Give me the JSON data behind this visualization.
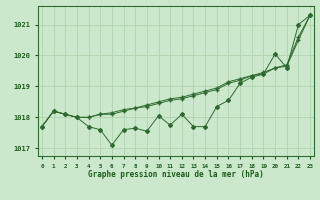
{
  "title": "Graphe pression niveau de la mer (hPa)",
  "xlabel_hours": [
    0,
    1,
    2,
    3,
    4,
    5,
    6,
    7,
    8,
    9,
    10,
    11,
    12,
    13,
    14,
    15,
    16,
    17,
    18,
    19,
    20,
    21,
    22,
    23
  ],
  "line1": [
    1017.7,
    1018.2,
    1018.1,
    1018.0,
    1017.7,
    1017.6,
    1017.1,
    1017.6,
    1017.65,
    1017.55,
    1018.05,
    1017.75,
    1018.1,
    1017.7,
    1017.7,
    1018.35,
    1018.55,
    1019.1,
    1019.3,
    1019.4,
    1020.05,
    1019.6,
    1021.0,
    1021.3
  ],
  "line2": [
    1017.7,
    1018.2,
    1018.1,
    1018.0,
    1018.0,
    1018.1,
    1018.1,
    1018.2,
    1018.3,
    1018.35,
    1018.45,
    1018.55,
    1018.6,
    1018.7,
    1018.8,
    1018.9,
    1019.1,
    1019.2,
    1019.35,
    1019.4,
    1019.6,
    1019.65,
    1020.5,
    1021.3
  ],
  "line3": [
    1017.7,
    1018.2,
    1018.1,
    1018.0,
    1018.0,
    1018.1,
    1018.15,
    1018.25,
    1018.3,
    1018.4,
    1018.5,
    1018.6,
    1018.65,
    1018.75,
    1018.85,
    1018.95,
    1019.15,
    1019.25,
    1019.35,
    1019.45,
    1019.6,
    1019.7,
    1020.6,
    1021.3
  ],
  "background_color": "#cce8cc",
  "line_color": "#2d6a2d",
  "grid_color": "#aacfaa",
  "ylim": [
    1016.75,
    1021.6
  ],
  "yticks": [
    1017,
    1018,
    1019,
    1020,
    1021
  ],
  "text_color": "#1a5c1a",
  "marker1": "D",
  "marker2": "+",
  "marker3": "+"
}
